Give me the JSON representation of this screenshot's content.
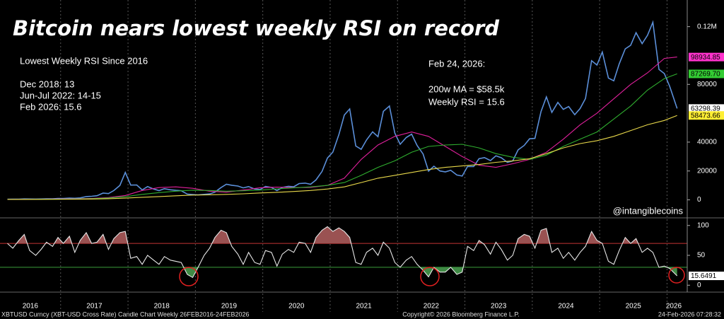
{
  "chart_data": [
    {
      "type": "line",
      "title": "Bitcoin nears lowest weekly RSI on record",
      "annotations": [
        "Lowest Weekly RSI Since 2016",
        "Dec 2018: 13",
        "Jun-Jul 2022: 14-15",
        "Feb 2026: 15.6",
        "Feb 24, 2026:",
        "200w MA = $58.5k",
        "Weekly RSI = 15.6",
        "@intangiblecoins"
      ],
      "xlim": [
        2016.1,
        2026.3
      ],
      "xticks": [
        {
          "value": 2016.55,
          "label": "2016"
        },
        {
          "value": 2017.5,
          "label": "2017"
        },
        {
          "value": 2018.5,
          "label": "2018"
        },
        {
          "value": 2019.5,
          "label": "2019"
        },
        {
          "value": 2020.5,
          "label": "2020"
        },
        {
          "value": 2021.5,
          "label": "2021"
        },
        {
          "value": 2022.5,
          "label": "2022"
        },
        {
          "value": 2023.5,
          "label": "2023"
        },
        {
          "value": 2024.5,
          "label": "2024"
        },
        {
          "value": 2025.5,
          "label": "2025"
        },
        {
          "value": 2026.1,
          "label": "2026"
        }
      ],
      "xgrid": [
        2017,
        2018,
        2019,
        2020,
        2021,
        2022,
        2023,
        2024,
        2025,
        2026
      ],
      "ylim": [
        -11000,
        136000
      ],
      "yticks": [
        0,
        20000,
        40000,
        80000,
        {
          "value": 120000,
          "label": "0.12M"
        }
      ],
      "ytags": [
        {
          "value": 98934.85,
          "label": "98934.85",
          "color": "#ff33cc"
        },
        {
          "value": 87269.7,
          "label": "87269.70",
          "color": "#33cc33"
        },
        {
          "value": 63298.39,
          "label": "63298.39",
          "color": "#ffffff"
        },
        {
          "value": 58473.66,
          "label": "58473.66",
          "color": "#ffee33"
        }
      ],
      "x": [
        2016.21,
        2016.29,
        2016.38,
        2016.46,
        2016.54,
        2016.63,
        2016.71,
        2016.79,
        2016.88,
        2016.96,
        2017.04,
        2017.13,
        2017.21,
        2017.29,
        2017.38,
        2017.46,
        2017.54,
        2017.63,
        2017.71,
        2017.79,
        2017.88,
        2017.96,
        2018.04,
        2018.13,
        2018.21,
        2018.29,
        2018.38,
        2018.46,
        2018.54,
        2018.63,
        2018.71,
        2018.79,
        2018.88,
        2018.96,
        2019.04,
        2019.13,
        2019.21,
        2019.29,
        2019.38,
        2019.46,
        2019.54,
        2019.63,
        2019.71,
        2019.79,
        2019.88,
        2019.96,
        2020.04,
        2020.13,
        2020.21,
        2020.29,
        2020.38,
        2020.46,
        2020.54,
        2020.63,
        2020.71,
        2020.79,
        2020.88,
        2020.96,
        2021.04,
        2021.13,
        2021.21,
        2021.29,
        2021.38,
        2021.46,
        2021.54,
        2021.63,
        2021.71,
        2021.79,
        2021.88,
        2021.96,
        2022.04,
        2022.13,
        2022.21,
        2022.29,
        2022.38,
        2022.46,
        2022.54,
        2022.63,
        2022.71,
        2022.79,
        2022.88,
        2022.96,
        2023.04,
        2023.13,
        2023.21,
        2023.29,
        2023.38,
        2023.46,
        2023.54,
        2023.63,
        2023.71,
        2023.79,
        2023.88,
        2023.96,
        2024.04,
        2024.13,
        2024.21,
        2024.29,
        2024.38,
        2024.46,
        2024.54,
        2024.63,
        2024.71,
        2024.79,
        2024.88,
        2024.96,
        2025.04,
        2025.13,
        2025.21,
        2025.29,
        2025.38,
        2025.46,
        2025.54,
        2025.63,
        2025.71,
        2025.79,
        2025.88,
        2025.96,
        2026.04,
        2026.15
      ],
      "series": [
        {
          "color": "#5b8fd9",
          "values": [
            416,
            448,
            530,
            670,
            624,
            575,
            609,
            700,
            740,
            963,
            970,
            1190,
            1080,
            1350,
            2300,
            2480,
            2870,
            4700,
            4340,
            6450,
            10000,
            19000,
            10200,
            10300,
            6900,
            9200,
            7500,
            6400,
            7700,
            7000,
            6600,
            6300,
            4000,
            3700,
            3450,
            3800,
            4100,
            5300,
            8500,
            10800,
            10100,
            9600,
            8300,
            9200,
            7500,
            7200,
            9300,
            8600,
            6400,
            8600,
            9400,
            9100,
            11300,
            11600,
            10800,
            13800,
            19700,
            29000,
            33100,
            45200,
            58800,
            63000,
            37300,
            35000,
            41500,
            47100,
            43800,
            61300,
            65000,
            46300,
            38500,
            43200,
            45500,
            37700,
            31800,
            19900,
            23300,
            20000,
            19400,
            20500,
            17200,
            16500,
            23100,
            23100,
            28500,
            29300,
            27200,
            30500,
            29200,
            26000,
            27000,
            34600,
            37700,
            42300,
            42600,
            61200,
            71300,
            60600,
            67500,
            62700,
            64600,
            59000,
            63300,
            70200,
            96400,
            93400,
            102400,
            84400,
            82500,
            94200,
            104600,
            107100,
            115800,
            108200,
            114000,
            123000,
            90400,
            87500,
            78600,
            63298.39
          ]
        },
        {
          "color": "#e0209c",
          "x": [
            2016.21,
            2016.46,
            2016.71,
            2016.96,
            2017.21,
            2017.46,
            2017.71,
            2017.96,
            2018.21,
            2018.46,
            2018.71,
            2018.96,
            2019.21,
            2019.46,
            2019.71,
            2019.96,
            2020.21,
            2020.46,
            2020.71,
            2020.96,
            2021.21,
            2021.46,
            2021.71,
            2021.96,
            2022.21,
            2022.46,
            2022.71,
            2022.96,
            2023.21,
            2023.46,
            2023.71,
            2023.96,
            2024.21,
            2024.46,
            2024.71,
            2024.96,
            2025.21,
            2025.46,
            2025.71,
            2025.96,
            2026.15
          ],
          "values": [
            330,
            400,
            480,
            600,
            720,
            1000,
            1600,
            3000,
            6500,
            8500,
            9000,
            8000,
            6000,
            5300,
            6800,
            8400,
            8800,
            8500,
            8600,
            10000,
            15000,
            28000,
            38000,
            44000,
            47000,
            44000,
            37000,
            30000,
            24000,
            22500,
            25000,
            28000,
            33000,
            42000,
            52000,
            60000,
            70000,
            80000,
            88000,
            98000,
            98934.85
          ]
        },
        {
          "color": "#2fae2f",
          "x": [
            2016.21,
            2016.46,
            2016.71,
            2016.96,
            2017.21,
            2017.46,
            2017.71,
            2017.96,
            2018.21,
            2018.46,
            2018.71,
            2018.96,
            2019.21,
            2019.46,
            2019.71,
            2019.96,
            2020.21,
            2020.46,
            2020.71,
            2020.96,
            2021.21,
            2021.46,
            2021.71,
            2021.96,
            2022.21,
            2022.46,
            2022.71,
            2022.96,
            2023.21,
            2023.46,
            2023.71,
            2023.96,
            2024.21,
            2024.46,
            2024.71,
            2024.96,
            2025.21,
            2025.46,
            2025.71,
            2025.96,
            2026.15
          ],
          "values": [
            300,
            350,
            400,
            450,
            600,
            800,
            1300,
            2200,
            3800,
            5000,
            6000,
            6700,
            6500,
            6000,
            6300,
            6800,
            7600,
            8300,
            9000,
            10000,
            12000,
            17000,
            22500,
            27000,
            33000,
            37000,
            38000,
            38500,
            36000,
            32000,
            29500,
            28000,
            31000,
            37000,
            42000,
            47000,
            56000,
            65000,
            76000,
            84000,
            87269.7
          ]
        },
        {
          "color": "#e8d84a",
          "x": [
            2016.21,
            2016.46,
            2016.71,
            2016.96,
            2017.21,
            2017.46,
            2017.71,
            2017.96,
            2018.21,
            2018.46,
            2018.71,
            2018.96,
            2019.21,
            2019.46,
            2019.71,
            2019.96,
            2020.21,
            2020.46,
            2020.71,
            2020.96,
            2021.21,
            2021.46,
            2021.71,
            2021.96,
            2022.21,
            2022.46,
            2022.71,
            2022.96,
            2023.21,
            2023.46,
            2023.71,
            2023.96,
            2024.21,
            2024.46,
            2024.71,
            2024.96,
            2025.21,
            2025.46,
            2025.71,
            2025.96,
            2026.15
          ],
          "values": [
            300,
            320,
            350,
            400,
            450,
            550,
            800,
            1200,
            1800,
            2300,
            2800,
            3300,
            3500,
            3800,
            4200,
            4800,
            5200,
            5800,
            6500,
            7500,
            9000,
            12000,
            15000,
            17000,
            19000,
            21000,
            22500,
            23500,
            24500,
            26000,
            27000,
            28500,
            32000,
            36000,
            39000,
            41000,
            44000,
            48000,
            52000,
            55000,
            58473.66
          ]
        }
      ]
    },
    {
      "type": "line",
      "xlim": [
        2016.1,
        2026.3
      ],
      "ylim": [
        -8,
        108
      ],
      "yticks": [
        0,
        50,
        100
      ],
      "levels": [
        {
          "value": 70,
          "color": "#c83232"
        },
        {
          "value": 30,
          "color": "#3aa03a"
        }
      ],
      "ytags": [
        {
          "value": 15.6491,
          "label": "15.6491",
          "color": "#ffffff"
        }
      ],
      "series": [
        {
          "color": "#e8e8e8",
          "above_color": "#9a5252",
          "below_color": "#3f8a45",
          "values": [
            70,
            62,
            75,
            85,
            58,
            50,
            60,
            72,
            65,
            80,
            70,
            82,
            55,
            75,
            88,
            70,
            72,
            85,
            60,
            78,
            88,
            90,
            45,
            48,
            35,
            50,
            42,
            35,
            48,
            42,
            40,
            38,
            18,
            13,
            30,
            50,
            62,
            80,
            92,
            88,
            65,
            52,
            35,
            55,
            38,
            35,
            58,
            55,
            32,
            52,
            60,
            55,
            72,
            70,
            55,
            80,
            92,
            98,
            90,
            96,
            90,
            80,
            38,
            35,
            55,
            62,
            50,
            72,
            62,
            38,
            30,
            42,
            48,
            35,
            25,
            14,
            30,
            22,
            22,
            30,
            18,
            22,
            65,
            58,
            75,
            68,
            52,
            72,
            60,
            42,
            50,
            78,
            85,
            82,
            62,
            92,
            95,
            55,
            62,
            45,
            55,
            42,
            55,
            65,
            90,
            75,
            70,
            40,
            35,
            58,
            80,
            70,
            78,
            55,
            62,
            55,
            30,
            32,
            28,
            15.6491
          ]
        }
      ]
    }
  ],
  "footer": {
    "left": "XBTUSD Curncy (XBT-USD Cross Rate) Candle Chart Weekly 26FEB2016-24FEB2026",
    "center": "Copyright© 2026 Bloomberg Finance L.P.",
    "right": "24-Feb-2026 07:28:32"
  }
}
